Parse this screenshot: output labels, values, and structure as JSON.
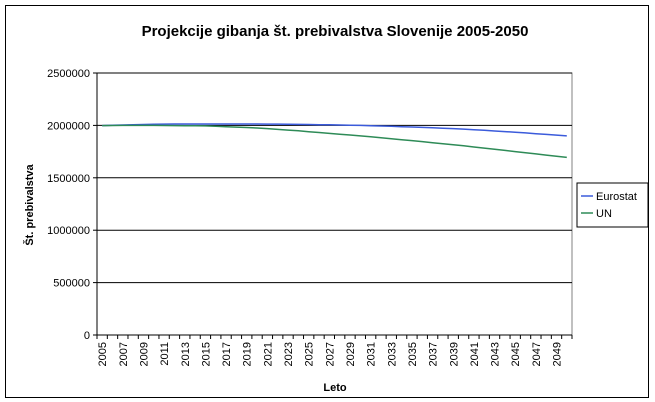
{
  "chart_data": {
    "type": "line",
    "title": "Projekcije gibanja št. prebivalstva Slovenije 2005-2050",
    "x_label": "Leto",
    "y_label": "Št. prebivalstva",
    "categories": [
      "2005",
      null,
      "2007",
      null,
      "2009",
      null,
      "2011",
      null,
      "2013",
      null,
      "2015",
      null,
      "2017",
      null,
      "2019",
      null,
      "2021",
      null,
      "2023",
      null,
      "2025",
      null,
      "2027",
      null,
      "2029",
      null,
      "2031",
      null,
      "2033",
      null,
      "2035",
      null,
      "2037",
      null,
      "2039",
      null,
      "2041",
      null,
      "2043",
      null,
      "2045",
      null,
      "2047",
      null,
      "2049",
      null
    ],
    "series": [
      {
        "name": "Eurostat",
        "color": "#3b5bdb",
        "values": [
          1998000,
          2001000,
          2004000,
          2007000,
          2009000,
          2011000,
          2012000,
          2013000,
          2013000,
          2013000,
          2013000,
          2013000,
          2013000,
          2013000,
          2013000,
          2013000,
          2012000,
          2012000,
          2011000,
          2010000,
          2009000,
          2007000,
          2006000,
          2004000,
          2002000,
          2000000,
          1997000,
          1994000,
          1991000,
          1988000,
          1985000,
          1981000,
          1977000,
          1973000,
          1969000,
          1965000,
          1959000,
          1953000,
          1947000,
          1941000,
          1935000,
          1928000,
          1921000,
          1914000,
          1907000,
          1900000
        ]
      },
      {
        "name": "UN",
        "color": "#2e8b57",
        "values": [
          1998000,
          1999000,
          2000000,
          2000000,
          2000000,
          2000000,
          1999000,
          1998000,
          1997000,
          1996000,
          1995000,
          1992000,
          1988000,
          1984000,
          1980000,
          1975000,
          1969000,
          1962000,
          1955000,
          1948000,
          1940000,
          1932000,
          1924000,
          1916000,
          1908000,
          1900000,
          1891000,
          1882000,
          1873000,
          1864000,
          1855000,
          1845000,
          1835000,
          1825000,
          1815000,
          1805000,
          1794000,
          1783000,
          1772000,
          1761000,
          1750000,
          1739000,
          1728000,
          1717000,
          1706000,
          1695000
        ]
      }
    ],
    "ylim": [
      0,
      2500000
    ],
    "yticks": [
      0,
      500000,
      1000000,
      1500000,
      2000000,
      2500000
    ],
    "grid": true,
    "legend": "right"
  }
}
